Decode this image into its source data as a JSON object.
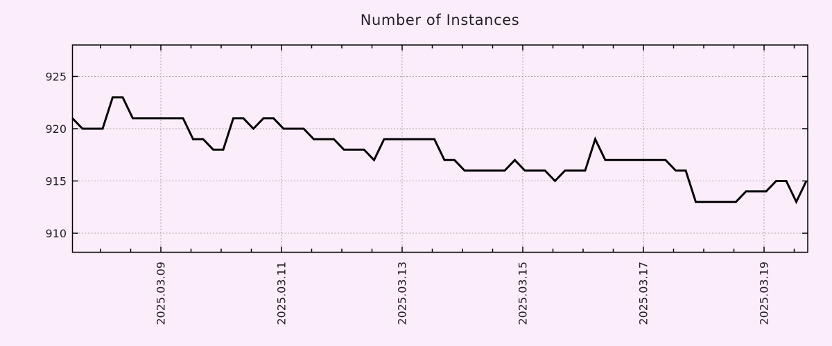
{
  "style": {
    "background": "#fbeefa",
    "line_color": "#000000",
    "grid_color": "#a3a3a3",
    "axis_color": "#000000",
    "text_color": "#231d2b"
  },
  "chart_data": {
    "type": "line",
    "title": "Number of Instances",
    "xlabel": "",
    "ylabel": "",
    "grid": true,
    "legend": null,
    "x_axis": {
      "tick_labels": [
        "2025.03.09",
        "2025.03.11",
        "2025.03.13",
        "2025.03.15",
        "2025.03.17",
        "2025.03.19"
      ],
      "tick_positions_days": [
        0,
        2,
        4,
        6,
        8,
        10
      ],
      "minor_tick_every_days": 0.5,
      "range_days": [
        -1.4655,
        10.7241
      ],
      "label_rotation_deg": -90
    },
    "y_axis": {
      "tick_labels": [
        "910",
        "915",
        "920",
        "925"
      ],
      "tick_values": [
        910,
        915,
        920,
        925
      ],
      "range": [
        908.18,
        928.01
      ]
    },
    "series": [
      {
        "name": "instances",
        "start_day": -1.4655,
        "step_days": 0.1666667,
        "values": [
          921,
          920,
          920,
          920,
          923,
          923,
          921,
          921,
          921,
          921,
          921,
          921,
          919,
          919,
          918,
          918,
          921,
          921,
          920,
          921,
          921,
          920,
          920,
          920,
          919,
          919,
          919,
          918,
          918,
          918,
          917,
          919,
          919,
          919,
          919,
          919,
          919,
          917,
          917,
          916,
          916,
          916,
          916,
          916,
          917,
          916,
          916,
          916,
          915,
          916,
          916,
          916,
          919,
          917,
          917,
          917,
          917,
          917,
          917,
          917,
          916,
          916,
          913,
          913,
          913,
          913,
          913,
          914,
          914,
          914,
          915,
          915,
          913,
          915
        ]
      }
    ]
  }
}
